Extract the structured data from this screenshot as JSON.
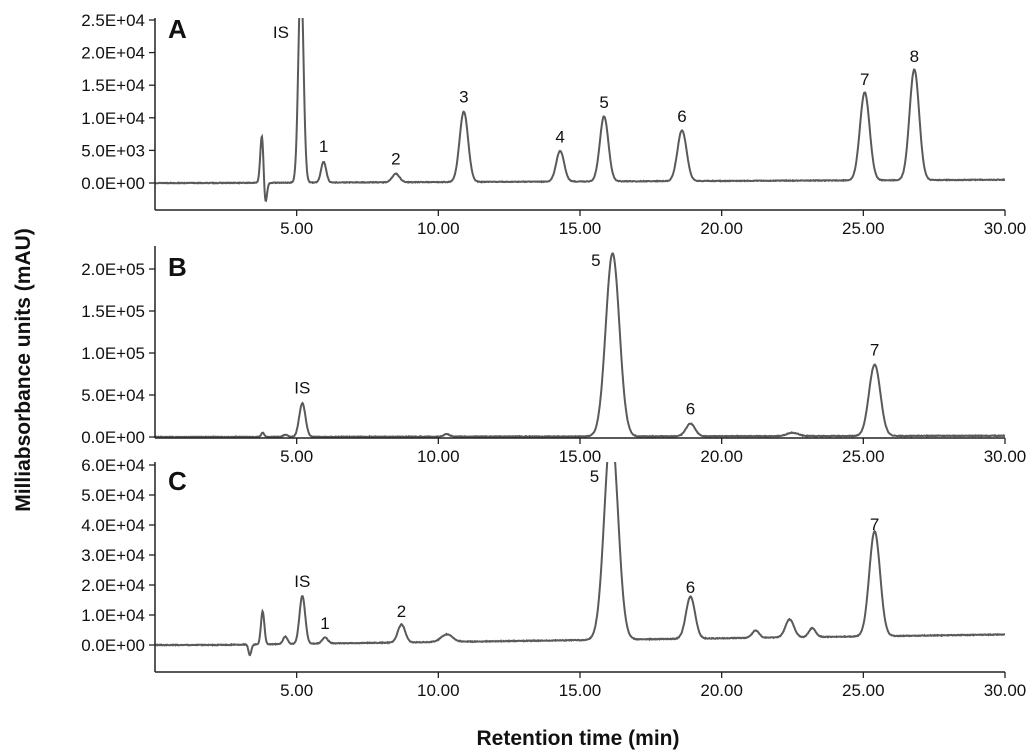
{
  "chart_data": [
    {
      "type": "line",
      "panel": "A",
      "xlim": [
        0,
        30
      ],
      "ylim": [
        -5000,
        25000
      ],
      "yticks": [
        "2.5E+04",
        "2.0E+04",
        "1.5E+04",
        "1.0E+04",
        "5.0E+03",
        "0.0E+00"
      ],
      "ytick_values": [
        25000,
        20000,
        15000,
        10000,
        5000,
        0
      ],
      "xticks": [
        "5.00",
        "10.00",
        "15.00",
        "20.00",
        "25.00",
        "30.00"
      ],
      "xtick_values": [
        5,
        10,
        15,
        20,
        25,
        30
      ],
      "baseline": 0,
      "end_baseline": 500,
      "dips": [
        {
          "x": 3.88,
          "h": -4000,
          "w": 0.06
        }
      ],
      "peaks": [
        {
          "label": "",
          "x": 3.78,
          "h": 8000,
          "w": 0.06
        },
        {
          "label": "IS",
          "x": 5.15,
          "h": 32000,
          "w": 0.09
        },
        {
          "label": "1",
          "x": 5.95,
          "h": 3200,
          "w": 0.09
        },
        {
          "label": "2",
          "x": 8.5,
          "h": 1300,
          "w": 0.13
        },
        {
          "label": "3",
          "x": 10.9,
          "h": 10800,
          "w": 0.15
        },
        {
          "label": "4",
          "x": 14.3,
          "h": 4700,
          "w": 0.14
        },
        {
          "label": "5",
          "x": 15.85,
          "h": 10000,
          "w": 0.15
        },
        {
          "label": "6",
          "x": 18.6,
          "h": 7800,
          "w": 0.16
        },
        {
          "label": "7",
          "x": 25.05,
          "h": 13500,
          "w": 0.17
        },
        {
          "label": "8",
          "x": 26.8,
          "h": 17000,
          "w": 0.17
        }
      ]
    },
    {
      "type": "line",
      "panel": "B",
      "xlim": [
        0,
        30
      ],
      "ylim": [
        0,
        220000
      ],
      "yticks": [
        "2.0E+05",
        "1.5E+05",
        "1.0E+05",
        "5.0E+04",
        "0.0E+00"
      ],
      "ytick_values": [
        200000,
        150000,
        100000,
        50000,
        0
      ],
      "xticks": [
        "5.00",
        "10.00",
        "15.00",
        "20.00",
        "25.00",
        "30.00"
      ],
      "xtick_values": [
        5,
        10,
        15,
        20,
        25,
        30
      ],
      "baseline": 0,
      "end_baseline": 1500,
      "dips": [],
      "peaks": [
        {
          "label": "",
          "x": 3.8,
          "h": 5000,
          "w": 0.05
        },
        {
          "label": "",
          "x": 4.6,
          "h": 2500,
          "w": 0.08
        },
        {
          "label": "IS",
          "x": 5.2,
          "h": 40000,
          "w": 0.11
        },
        {
          "label": "",
          "x": 10.3,
          "h": 3000,
          "w": 0.1
        },
        {
          "label": "5",
          "x": 16.15,
          "h": 218000,
          "w": 0.24
        },
        {
          "label": "6",
          "x": 18.9,
          "h": 15000,
          "w": 0.16
        },
        {
          "label": "",
          "x": 22.5,
          "h": 4000,
          "w": 0.2
        },
        {
          "label": "7",
          "x": 25.4,
          "h": 85000,
          "w": 0.2
        }
      ]
    },
    {
      "type": "line",
      "panel": "C",
      "xlim": [
        0,
        30
      ],
      "ylim": [
        -3000,
        60000
      ],
      "yticks": [
        "6.0E+04",
        "5.0E+04",
        "4.0E+04",
        "3.0E+04",
        "2.0E+04",
        "1.0E+04",
        "0.0E+00"
      ],
      "ytick_values": [
        60000,
        50000,
        40000,
        30000,
        20000,
        10000,
        0
      ],
      "xticks": [
        "5.00",
        "10.00",
        "15.00",
        "20.00",
        "25.00",
        "30.00"
      ],
      "xtick_values": [
        5,
        10,
        15,
        20,
        25,
        30
      ],
      "baseline": 0,
      "end_baseline": 3500,
      "dips": [
        {
          "x": 3.35,
          "h": -3500,
          "w": 0.05
        }
      ],
      "peaks": [
        {
          "label": "",
          "x": 3.8,
          "h": 11000,
          "w": 0.06
        },
        {
          "label": "",
          "x": 4.6,
          "h": 2500,
          "w": 0.08
        },
        {
          "label": "IS",
          "x": 5.2,
          "h": 16000,
          "w": 0.1
        },
        {
          "label": "1",
          "x": 6.0,
          "h": 2000,
          "w": 0.1
        },
        {
          "label": "2",
          "x": 8.7,
          "h": 6000,
          "w": 0.13
        },
        {
          "label": "",
          "x": 10.3,
          "h": 2500,
          "w": 0.2
        },
        {
          "label": "5",
          "x": 16.1,
          "h": 70000,
          "w": 0.24
        },
        {
          "label": "6",
          "x": 18.9,
          "h": 14000,
          "w": 0.16
        },
        {
          "label": "",
          "x": 21.2,
          "h": 2500,
          "w": 0.12
        },
        {
          "label": "",
          "x": 22.4,
          "h": 6000,
          "w": 0.15
        },
        {
          "label": "",
          "x": 23.2,
          "h": 3000,
          "w": 0.12
        },
        {
          "label": "7",
          "x": 25.4,
          "h": 35000,
          "w": 0.19
        }
      ]
    }
  ],
  "ylabel": "Milliabsorbance units (mAU)",
  "xlabel": "Retention time (min)",
  "colors": {
    "trace": "#5a5a5a",
    "axis": "#222222",
    "text": "#111111"
  }
}
